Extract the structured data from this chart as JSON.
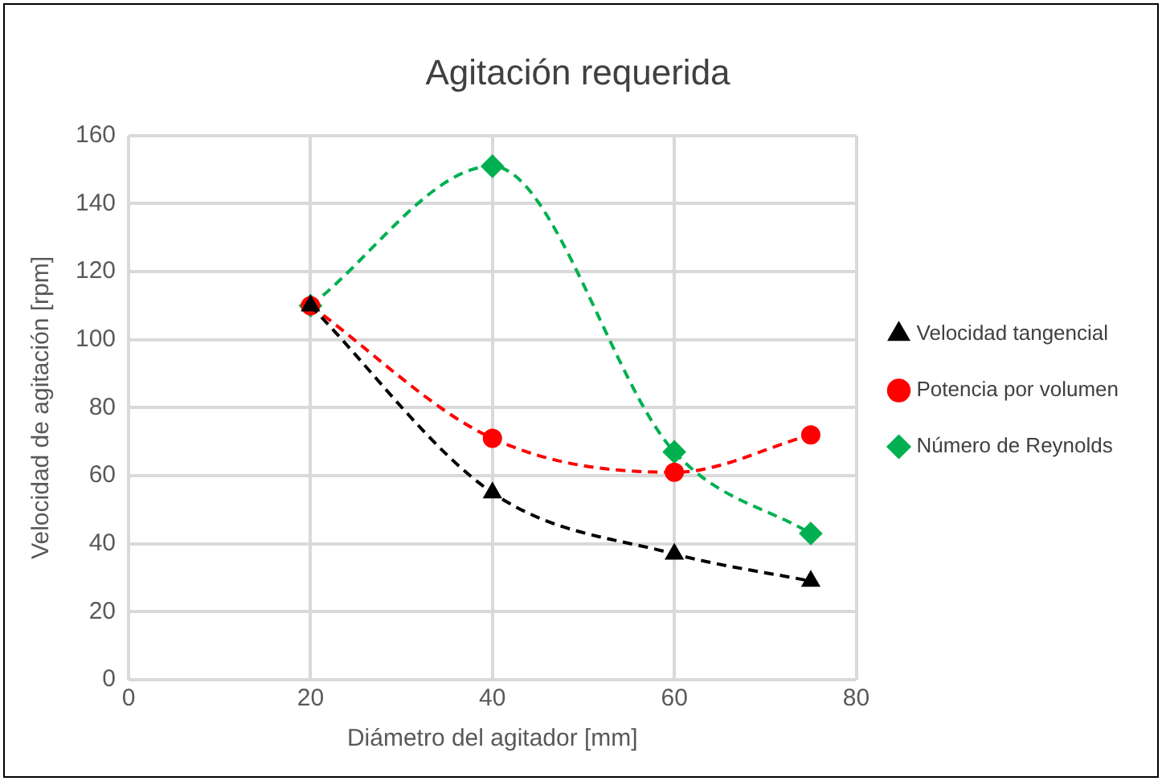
{
  "chart_data": {
    "type": "line",
    "title": "Agitación requerida",
    "xlabel": "Diámetro del agitador [mm]",
    "ylabel": "Velocidad de agitación [rpm]",
    "x": [
      20,
      40,
      60,
      75
    ],
    "xlim": [
      0,
      80
    ],
    "xticks": [
      0,
      20,
      40,
      60,
      80
    ],
    "ylim": [
      0,
      160
    ],
    "yticks": [
      0,
      20,
      40,
      60,
      80,
      100,
      120,
      140,
      160
    ],
    "grid": true,
    "legend": "right",
    "line_style": "dashed",
    "series": [
      {
        "name": "Velocidad tangencial",
        "color": "#000000",
        "marker": "triangle",
        "values": [
          110,
          55,
          37,
          29
        ]
      },
      {
        "name": "Potencia por volumen",
        "color": "#ff0000",
        "marker": "circle",
        "values": [
          110,
          71,
          61,
          72
        ]
      },
      {
        "name": "Número de Reynolds",
        "color": "#00b050",
        "marker": "diamond",
        "values": [
          110,
          151,
          67,
          43
        ]
      }
    ]
  }
}
